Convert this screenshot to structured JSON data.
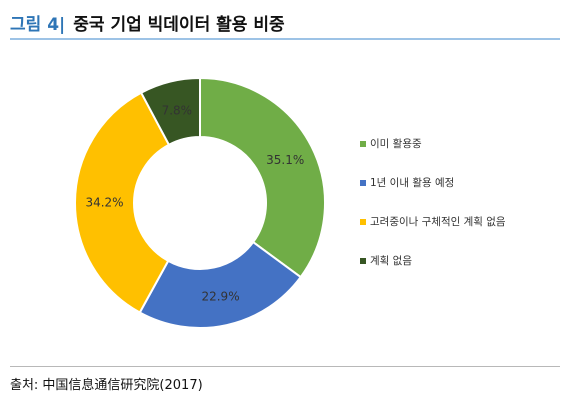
{
  "figure": {
    "number_label": "그림 4|",
    "title": "중국 기업 빅데이터 활용 비중",
    "source": "출처: 中国信息通信研究院(2017)"
  },
  "chart_data": {
    "type": "donut",
    "title": "",
    "series": [
      {
        "name": "이미 활용중",
        "value": 35.1,
        "label": "35.1%",
        "color": "#70ad47"
      },
      {
        "name": "1년 이내 활용 예정",
        "value": 22.9,
        "label": "22.9%",
        "color": "#4472c4"
      },
      {
        "name": "고려중이나 구체적인 계획 없음",
        "value": 34.2,
        "label": "34.2%",
        "color": "#ffc000"
      },
      {
        "name": "계획 없음",
        "value": 7.8,
        "label": "7.8%",
        "color": "#375623"
      }
    ],
    "legend_position": "right"
  }
}
